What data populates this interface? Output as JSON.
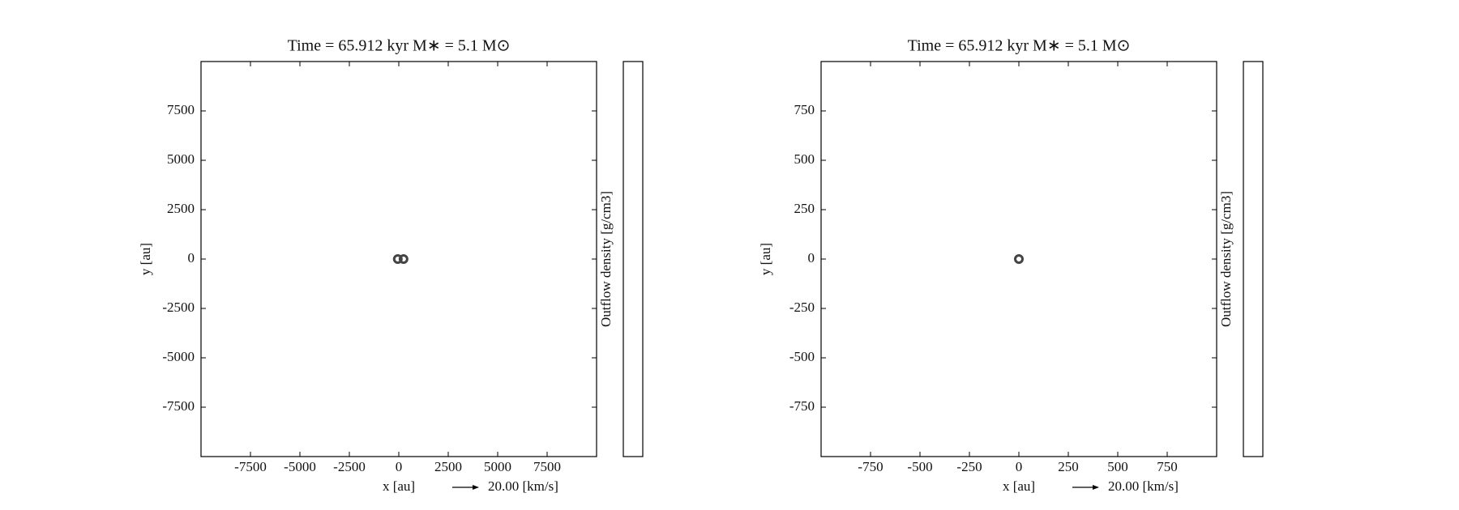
{
  "chart_data": [
    {
      "type": "scatter",
      "title": "Time = 65.912 kyr    M∗ = 5.1 M⊙",
      "xlabel": "x [au]",
      "ylabel": "y [au]",
      "colorbar_label": "Outflow density [g/cm3]",
      "quiver_key_label": "20.00 [km/s]",
      "x": [
        -50,
        240
      ],
      "y": [
        0,
        0
      ],
      "color": "#444444",
      "xlim": [
        -10000,
        10000
      ],
      "ylim": [
        -10000,
        10000
      ],
      "xticks": [
        -7500,
        -5000,
        -2500,
        0,
        2500,
        5000,
        7500
      ],
      "yticks": [
        -7500,
        -5000,
        -2500,
        0,
        2500,
        5000,
        7500
      ]
    },
    {
      "type": "scatter",
      "title": "Time = 65.912 kyr    M∗ = 5.1 M⊙",
      "xlabel": "x [au]",
      "ylabel": "y [au]",
      "colorbar_label": "Outflow density [g/cm3]",
      "quiver_key_label": "20.00 [km/s]",
      "x": [
        0
      ],
      "y": [
        0
      ],
      "color": "#444444",
      "xlim": [
        -1000,
        1000
      ],
      "ylim": [
        -1000,
        1000
      ],
      "xticks": [
        -750,
        -500,
        -250,
        0,
        250,
        500,
        750
      ],
      "yticks": [
        -750,
        -500,
        -250,
        0,
        250,
        500,
        750
      ]
    }
  ]
}
